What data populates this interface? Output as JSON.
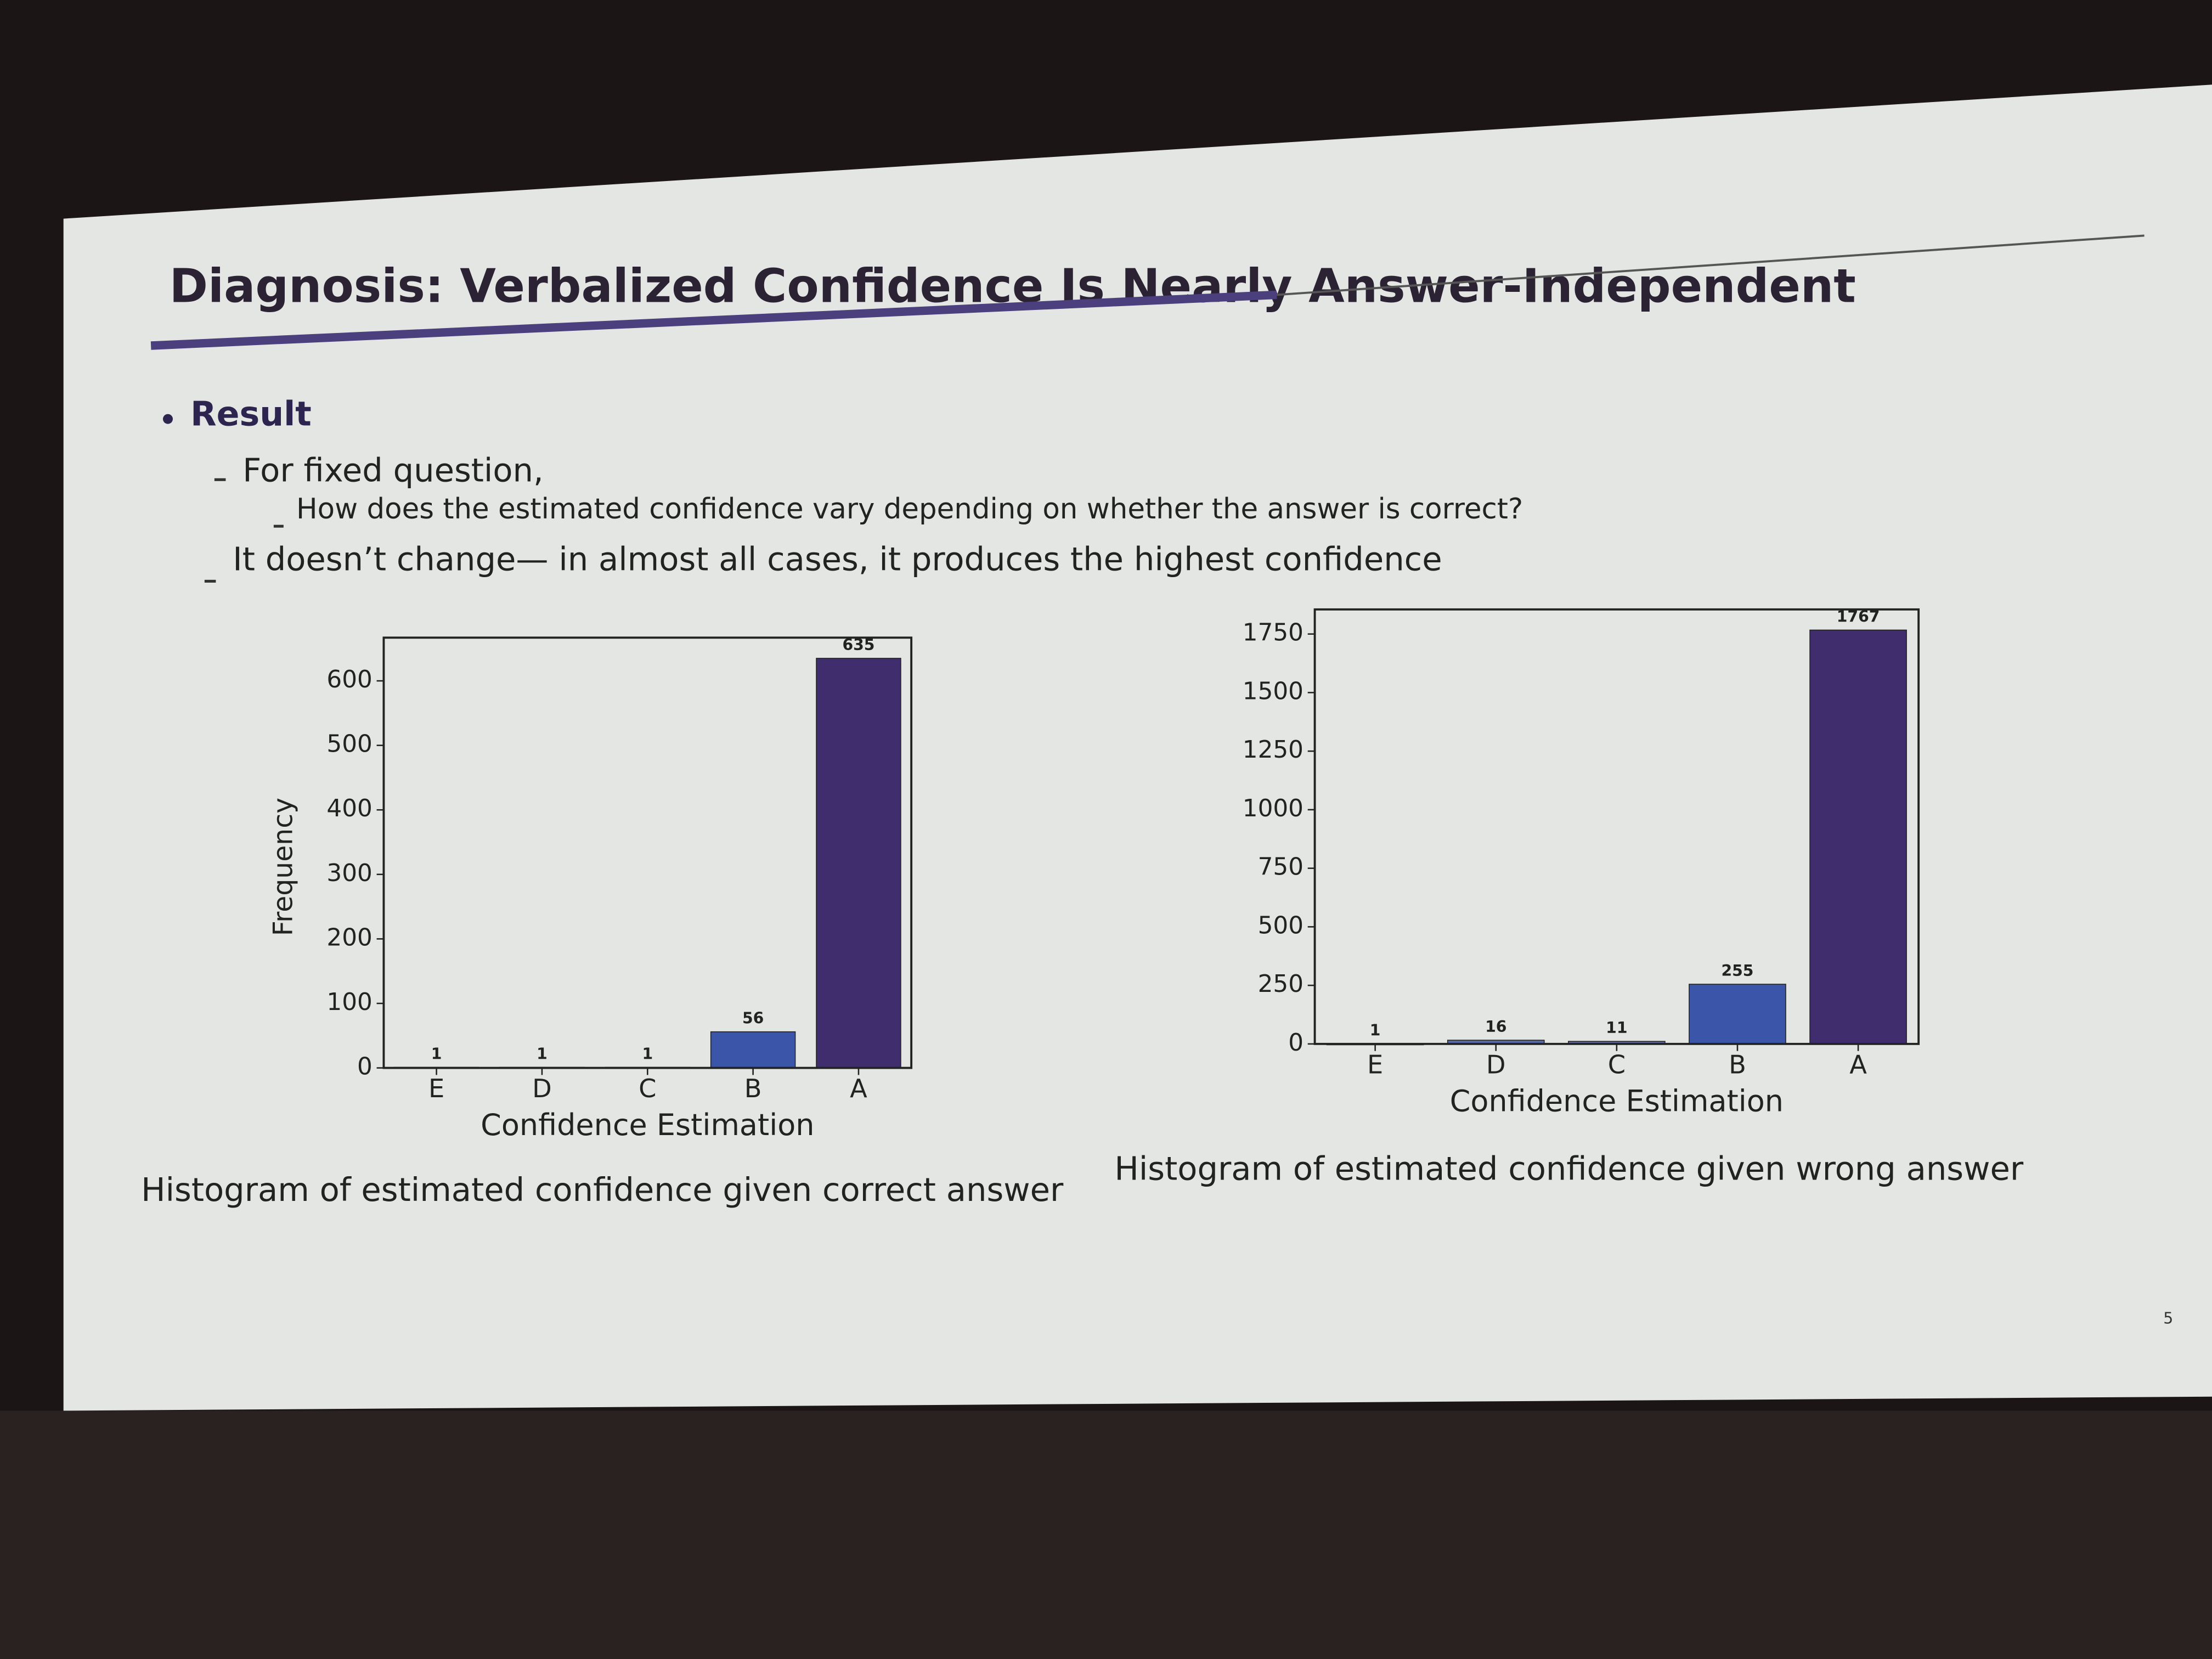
{
  "slide": {
    "title": "Diagnosis: Verbalized Confidence Is Nearly Answer-Independent",
    "bullet": "Result",
    "items": [
      "For fixed question,",
      "How does the estimated confidence vary depending on whether the answer is correct?",
      "It doesn’t change— in almost all cases, it produces the highest confidence"
    ],
    "page_number": 5
  },
  "chart_data": [
    {
      "type": "bar",
      "caption": "Histogram of estimated confidence given correct answer",
      "x_label": "Confidence Estimation",
      "y_label": "Frequency",
      "categories": [
        "E",
        "D",
        "C",
        "B",
        "A"
      ],
      "values": [
        1,
        1,
        1,
        56,
        635
      ],
      "colors": [
        "#8a8fb0",
        "#8a8fb0",
        "#8a8fb0",
        "#3b55a8",
        "#3f2d6e"
      ],
      "ylim": [
        0,
        667
      ],
      "yticks": [
        0,
        100,
        200,
        300,
        400,
        500,
        600
      ]
    },
    {
      "type": "bar",
      "caption": "Histogram of estimated confidence given wrong answer",
      "x_label": "Confidence Estimation",
      "categories": [
        "E",
        "D",
        "C",
        "B",
        "A"
      ],
      "values": [
        1,
        16,
        11,
        255,
        1767
      ],
      "colors": [
        "#8a8fb0",
        "#5a6aa8",
        "#5a6aa8",
        "#3b55a8",
        "#3f2d6e"
      ],
      "ylim": [
        0,
        1855
      ],
      "yticks": [
        0,
        250,
        500,
        750,
        1000,
        1250,
        1500,
        1750
      ]
    }
  ]
}
